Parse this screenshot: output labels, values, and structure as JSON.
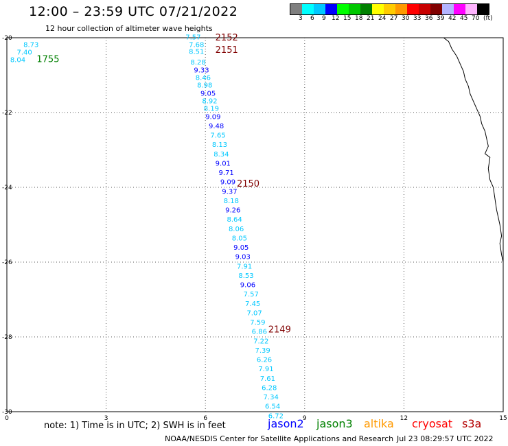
{
  "header": {
    "title": "12:00 – 23:59 UTC 07/21/2022",
    "subtitle": "12 hour collection of altimeter wave heights"
  },
  "colorbar": {
    "colors": [
      "#7f7f7f",
      "#00ffff",
      "#00c8ff",
      "#0000ff",
      "#00ff00",
      "#00c800",
      "#008000",
      "#ffff00",
      "#ffcc00",
      "#ff9900",
      "#ff0000",
      "#c80000",
      "#800000",
      "#b4b4ff",
      "#ff00ff",
      "#ffb4ff",
      "#000000"
    ],
    "labels": [
      "3",
      "6",
      "9",
      "12",
      "15",
      "18",
      "21",
      "24",
      "27",
      "30",
      "33",
      "36",
      "39",
      "42",
      "45",
      "70",
      "(ft)"
    ]
  },
  "chart_data": {
    "type": "scatter",
    "x_ticks": [
      "0",
      "3",
      "6",
      "9",
      "12",
      "15"
    ],
    "y_ticks": [
      "-20",
      "-22",
      "-24",
      "-26",
      "-28",
      "-30"
    ],
    "xlim": [
      0,
      15
    ],
    "ylim": [
      -30,
      -20
    ],
    "grid": true,
    "time_labels": [
      {
        "text": "2152",
        "x": 6.3,
        "y": -20.07,
        "color": "#800000"
      },
      {
        "text": "2151",
        "x": 6.3,
        "y": -20.4,
        "color": "#800000"
      },
      {
        "text": "1755",
        "x": 0.9,
        "y": -20.65,
        "color": "#008000"
      },
      {
        "text": "2150",
        "x": 6.95,
        "y": -23.98,
        "color": "#800000"
      },
      {
        "text": "2149",
        "x": 7.9,
        "y": -27.88,
        "color": "#800000"
      }
    ],
    "points": [
      {
        "v": "8.73",
        "x": 0.5,
        "y": -20.25,
        "color": "#00c8ff"
      },
      {
        "v": "7.40",
        "x": 0.3,
        "y": -20.45,
        "color": "#00c8ff"
      },
      {
        "v": "8.04",
        "x": 0.1,
        "y": -20.65,
        "color": "#00c8ff"
      },
      {
        "v": "7.57",
        "x": 5.4,
        "y": -20.05,
        "color": "#00c8ff"
      },
      {
        "v": "7.68",
        "x": 5.5,
        "y": -20.25,
        "color": "#00c8ff"
      },
      {
        "v": "8.51",
        "x": 5.5,
        "y": -20.43,
        "color": "#00c8ff"
      },
      {
        "v": "8.28",
        "x": 5.55,
        "y": -20.72,
        "color": "#00c8ff"
      },
      {
        "v": "9.33",
        "x": 5.65,
        "y": -20.93,
        "color": "#0000ff"
      },
      {
        "v": "8.46",
        "x": 5.7,
        "y": -21.13,
        "color": "#00c8ff"
      },
      {
        "v": "8.98",
        "x": 5.75,
        "y": -21.33,
        "color": "#00c8ff"
      },
      {
        "v": "9.05",
        "x": 5.85,
        "y": -21.55,
        "color": "#0000ff"
      },
      {
        "v": "8.92",
        "x": 5.9,
        "y": -21.75,
        "color": "#00c8ff"
      },
      {
        "v": "8.19",
        "x": 5.95,
        "y": -21.95,
        "color": "#00c8ff"
      },
      {
        "v": "9.09",
        "x": 6.0,
        "y": -22.17,
        "color": "#0000ff"
      },
      {
        "v": "9.48",
        "x": 6.1,
        "y": -22.42,
        "color": "#0000ff"
      },
      {
        "v": "7.65",
        "x": 6.15,
        "y": -22.67,
        "color": "#00c8ff"
      },
      {
        "v": "8.13",
        "x": 6.2,
        "y": -22.92,
        "color": "#00c8ff"
      },
      {
        "v": "8.34",
        "x": 6.25,
        "y": -23.17,
        "color": "#00c8ff"
      },
      {
        "v": "9.01",
        "x": 6.3,
        "y": -23.42,
        "color": "#0000ff"
      },
      {
        "v": "9.71",
        "x": 6.4,
        "y": -23.67,
        "color": "#0000ff"
      },
      {
        "v": "9.09",
        "x": 6.45,
        "y": -23.92,
        "color": "#0000ff"
      },
      {
        "v": "9.37",
        "x": 6.5,
        "y": -24.17,
        "color": "#0000ff"
      },
      {
        "v": "8.18",
        "x": 6.55,
        "y": -24.42,
        "color": "#00c8ff"
      },
      {
        "v": "9.26",
        "x": 6.6,
        "y": -24.67,
        "color": "#0000ff"
      },
      {
        "v": "8.64",
        "x": 6.65,
        "y": -24.92,
        "color": "#00c8ff"
      },
      {
        "v": "8.06",
        "x": 6.7,
        "y": -25.17,
        "color": "#00c8ff"
      },
      {
        "v": "8.05",
        "x": 6.8,
        "y": -25.42,
        "color": "#00c8ff"
      },
      {
        "v": "9.05",
        "x": 6.85,
        "y": -25.67,
        "color": "#0000ff"
      },
      {
        "v": "9.03",
        "x": 6.9,
        "y": -25.92,
        "color": "#0000ff"
      },
      {
        "v": "7.91",
        "x": 6.95,
        "y": -26.17,
        "color": "#00c8ff"
      },
      {
        "v": "8.53",
        "x": 7.0,
        "y": -26.42,
        "color": "#00c8ff"
      },
      {
        "v": "9.06",
        "x": 7.05,
        "y": -26.67,
        "color": "#0000ff"
      },
      {
        "v": "7.57",
        "x": 7.15,
        "y": -26.92,
        "color": "#00c8ff"
      },
      {
        "v": "7.45",
        "x": 7.2,
        "y": -27.17,
        "color": "#00c8ff"
      },
      {
        "v": "7.07",
        "x": 7.25,
        "y": -27.42,
        "color": "#00c8ff"
      },
      {
        "v": "7.59",
        "x": 7.35,
        "y": -27.67,
        "color": "#00c8ff"
      },
      {
        "v": "6.86",
        "x": 7.4,
        "y": -27.92,
        "color": "#00c8ff"
      },
      {
        "v": "7.22",
        "x": 7.45,
        "y": -28.17,
        "color": "#00c8ff"
      },
      {
        "v": "7.39",
        "x": 7.5,
        "y": -28.42,
        "color": "#00c8ff"
      },
      {
        "v": "6.26",
        "x": 7.55,
        "y": -28.67,
        "color": "#00c8ff"
      },
      {
        "v": "7.91",
        "x": 7.6,
        "y": -28.92,
        "color": "#00c8ff"
      },
      {
        "v": "7.61",
        "x": 7.65,
        "y": -29.17,
        "color": "#00c8ff"
      },
      {
        "v": "6.28",
        "x": 7.7,
        "y": -29.42,
        "color": "#00c8ff"
      },
      {
        "v": "7.34",
        "x": 7.75,
        "y": -29.67,
        "color": "#00c8ff"
      },
      {
        "v": "6.54",
        "x": 7.8,
        "y": -29.92,
        "color": "#00c8ff"
      },
      {
        "v": "6.72",
        "x": 7.9,
        "y": -30.17,
        "color": "#00c8ff"
      }
    ],
    "coastline": [
      [
        13.2,
        -20.0
      ],
      [
        13.35,
        -20.1
      ],
      [
        13.45,
        -20.3
      ],
      [
        13.6,
        -20.5
      ],
      [
        13.7,
        -20.7
      ],
      [
        13.8,
        -20.9
      ],
      [
        13.85,
        -21.1
      ],
      [
        13.95,
        -21.3
      ],
      [
        14.0,
        -21.5
      ],
      [
        14.1,
        -21.7
      ],
      [
        14.2,
        -21.9
      ],
      [
        14.3,
        -22.1
      ],
      [
        14.35,
        -22.3
      ],
      [
        14.45,
        -22.5
      ],
      [
        14.5,
        -22.7
      ],
      [
        14.55,
        -22.9
      ],
      [
        14.45,
        -23.1
      ],
      [
        14.6,
        -23.2
      ],
      [
        14.55,
        -23.5
      ],
      [
        14.6,
        -23.8
      ],
      [
        14.7,
        -24.0
      ],
      [
        14.75,
        -24.3
      ],
      [
        14.8,
        -24.6
      ],
      [
        14.85,
        -24.8
      ],
      [
        14.9,
        -25.0
      ],
      [
        14.95,
        -25.3
      ],
      [
        14.9,
        -25.5
      ],
      [
        14.95,
        -25.8
      ],
      [
        15.0,
        -26.0
      ],
      [
        15.0,
        -26.1
      ]
    ]
  },
  "legend": {
    "note": "note: 1) Time is in UTC; 2) SWH is in feet",
    "items": [
      {
        "label": "jason2",
        "color": "#0000ff"
      },
      {
        "label": "jason3",
        "color": "#008000"
      },
      {
        "label": "altika",
        "color": "#ff9900"
      },
      {
        "label": "cryosat",
        "color": "#ff0000"
      },
      {
        "label": "s3a",
        "color": "#b40000"
      }
    ]
  },
  "footer": {
    "credit": "NOAA/NESDIS Center for Satellite Applications and Research",
    "timestamp": "Jul 23 08:29:57 UTC 2022"
  }
}
